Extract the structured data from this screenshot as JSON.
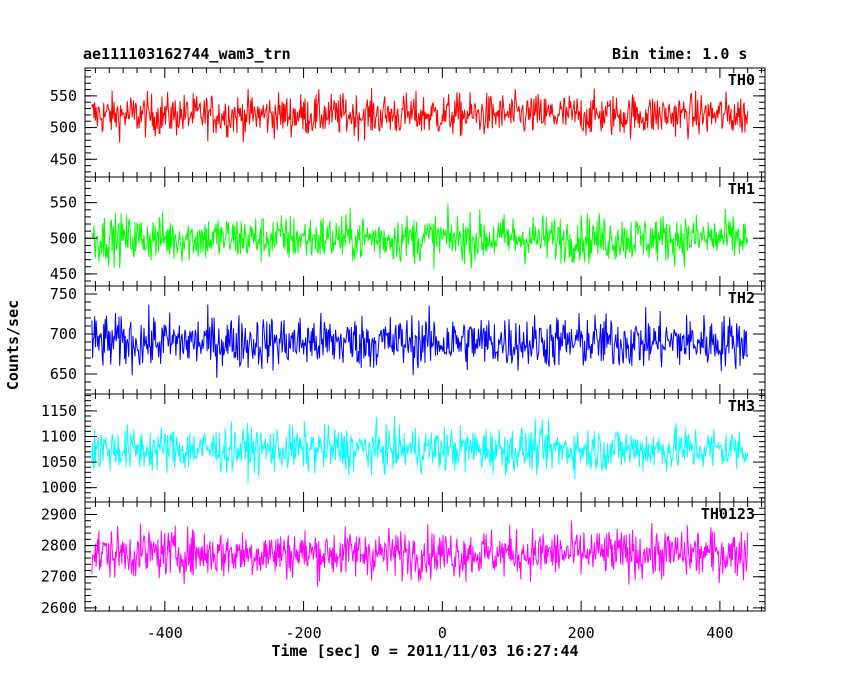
{
  "header": {
    "title": "ae111103162744_wam3_trn",
    "bin_time": "Bin time: 1.0 s"
  },
  "chart_data": {
    "type": "line",
    "ylabel": "Counts/sec",
    "xlabel": "Time [sec] 0 = 2011/11/03 16:27:44",
    "xlim": [
      -515,
      465
    ],
    "x_ticks": [
      -400,
      -200,
      0,
      200,
      400
    ],
    "x_range_data": [
      -505,
      440
    ],
    "panels": [
      {
        "name": "TH0",
        "color": "#ff0000",
        "ylim": [
          422,
          594
        ],
        "yticks": [
          450,
          500,
          550
        ],
        "mean": 520,
        "noise": 30
      },
      {
        "name": "TH1",
        "color": "#00ff00",
        "ylim": [
          433,
          586
        ],
        "yticks": [
          450,
          500,
          550
        ],
        "mean": 500,
        "noise": 30
      },
      {
        "name": "TH2",
        "color": "#0000ff",
        "ylim": [
          625,
          760
        ],
        "yticks": [
          650,
          700,
          750
        ],
        "mean": 690,
        "noise": 30
      },
      {
        "name": "TH3",
        "color": "#00ffff",
        "ylim": [
          972,
          1183
        ],
        "yticks": [
          1000,
          1050,
          1100,
          1150
        ],
        "mean": 1075,
        "noise": 40
      },
      {
        "name": "TH0123",
        "color": "#ff00ff",
        "ylim": [
          2590,
          2940
        ],
        "yticks": [
          2600,
          2700,
          2800,
          2900
        ],
        "mean": 2775,
        "noise": 70
      }
    ]
  }
}
